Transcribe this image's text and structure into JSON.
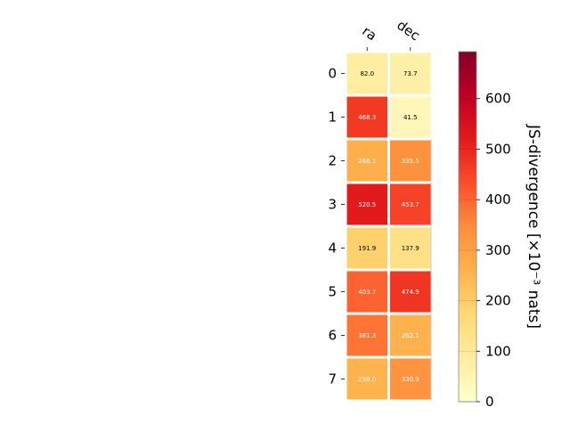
{
  "chart_data": {
    "type": "heatmap",
    "title": "",
    "columns": [
      "ra",
      "dec"
    ],
    "rows": [
      "0",
      "1",
      "2",
      "3",
      "4",
      "5",
      "6",
      "7"
    ],
    "values": [
      [
        82.0,
        73.7
      ],
      [
        468.3,
        41.5
      ],
      [
        268.1,
        335.5
      ],
      [
        520.5,
        453.7
      ],
      [
        191.9,
        137.9
      ],
      [
        403.7,
        474.9
      ],
      [
        381.3,
        262.1
      ],
      [
        258.0,
        330.9
      ]
    ],
    "cell_labels": [
      [
        "82.0",
        "73.7"
      ],
      [
        "468.3",
        "41.5"
      ],
      [
        "268.1",
        "335.5"
      ],
      [
        "520.5",
        "453.7"
      ],
      [
        "191.9",
        "137.9"
      ],
      [
        "403.7",
        "474.9"
      ],
      [
        "381.3",
        "262.1"
      ],
      [
        "258.0",
        "330.9"
      ]
    ],
    "colorbar": {
      "label": "JS-divergence [×10⁻³ nats]",
      "range": [
        0,
        693
      ],
      "ticks": [
        0,
        100,
        200,
        300,
        400,
        500,
        600
      ],
      "colormap": "YlOrRd",
      "colormap_stops": [
        "#ffffcc",
        "#ffeda0",
        "#fed976",
        "#feb24c",
        "#fd8d3c",
        "#fc4e2a",
        "#e31a1c",
        "#bd0026",
        "#800026"
      ]
    },
    "grid": false,
    "legend": "none"
  }
}
